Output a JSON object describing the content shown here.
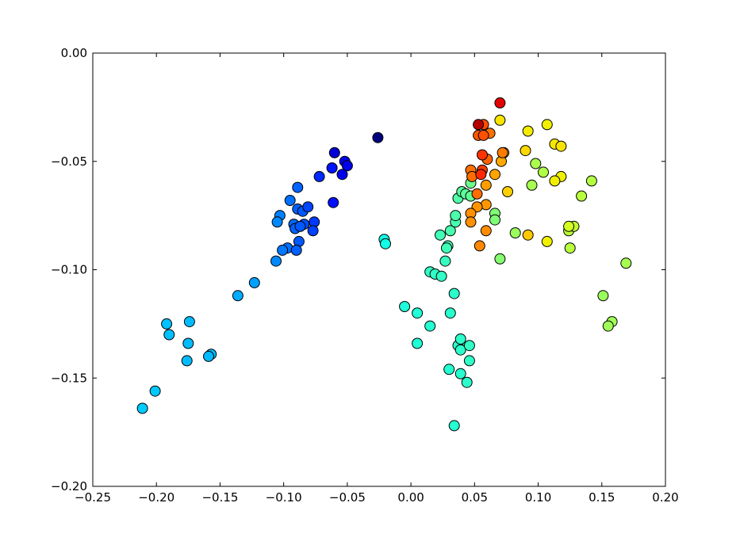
{
  "chart_data": {
    "type": "scatter",
    "title": "",
    "xlabel": "",
    "ylabel": "",
    "xlim": [
      -0.25,
      0.2
    ],
    "ylim": [
      -0.2,
      0.0
    ],
    "grid": false,
    "colormap": "jet",
    "marker_edge_color": "#000000",
    "x_ticks": [
      {
        "value": -0.25,
        "label": "−0.25"
      },
      {
        "value": -0.2,
        "label": "−0.20"
      },
      {
        "value": -0.15,
        "label": "−0.15"
      },
      {
        "value": -0.1,
        "label": "−0.10"
      },
      {
        "value": -0.05,
        "label": "−0.05"
      },
      {
        "value": 0.0,
        "label": "0.00"
      },
      {
        "value": 0.05,
        "label": "0.05"
      },
      {
        "value": 0.1,
        "label": "0.10"
      },
      {
        "value": 0.15,
        "label": "0.15"
      },
      {
        "value": 0.2,
        "label": "0.20"
      }
    ],
    "y_ticks": [
      {
        "value": 0.0,
        "label": "0.00"
      },
      {
        "value": -0.05,
        "label": "−0.05"
      },
      {
        "value": -0.1,
        "label": "−0.10"
      },
      {
        "value": -0.15,
        "label": "−0.15"
      },
      {
        "value": -0.2,
        "label": "−0.20"
      }
    ],
    "points": [
      {
        "x": -0.026,
        "y": -0.039,
        "color": "#00007f"
      },
      {
        "x": -0.06,
        "y": -0.046,
        "color": "#0000d4"
      },
      {
        "x": -0.052,
        "y": -0.05,
        "color": "#0000e8"
      },
      {
        "x": -0.05,
        "y": -0.052,
        "color": "#0000ea"
      },
      {
        "x": -0.062,
        "y": -0.053,
        "color": "#0014ff"
      },
      {
        "x": -0.054,
        "y": -0.056,
        "color": "#0000f0"
      },
      {
        "x": -0.072,
        "y": -0.057,
        "color": "#0028ff"
      },
      {
        "x": -0.061,
        "y": -0.069,
        "color": "#0010ff"
      },
      {
        "x": -0.089,
        "y": -0.062,
        "color": "#0064ff"
      },
      {
        "x": -0.095,
        "y": -0.068,
        "color": "#0070ff"
      },
      {
        "x": -0.089,
        "y": -0.072,
        "color": "#0060ff"
      },
      {
        "x": -0.085,
        "y": -0.073,
        "color": "#0058ff"
      },
      {
        "x": -0.081,
        "y": -0.071,
        "color": "#0044ff"
      },
      {
        "x": -0.103,
        "y": -0.075,
        "color": "#0080ff"
      },
      {
        "x": -0.105,
        "y": -0.078,
        "color": "#0088ff"
      },
      {
        "x": -0.076,
        "y": -0.078,
        "color": "#0038ff"
      },
      {
        "x": -0.092,
        "y": -0.079,
        "color": "#0068ff"
      },
      {
        "x": -0.084,
        "y": -0.079,
        "color": "#0050ff"
      },
      {
        "x": -0.091,
        "y": -0.081,
        "color": "#0060ff"
      },
      {
        "x": -0.087,
        "y": -0.08,
        "color": "#0058ff"
      },
      {
        "x": -0.077,
        "y": -0.082,
        "color": "#0040ff"
      },
      {
        "x": -0.088,
        "y": -0.087,
        "color": "#0058ff"
      },
      {
        "x": -0.097,
        "y": -0.09,
        "color": "#0070ff"
      },
      {
        "x": -0.101,
        "y": -0.091,
        "color": "#0078ff"
      },
      {
        "x": -0.09,
        "y": -0.091,
        "color": "#0060ff"
      },
      {
        "x": -0.106,
        "y": -0.096,
        "color": "#0088ff"
      },
      {
        "x": -0.123,
        "y": -0.106,
        "color": "#00a0ff"
      },
      {
        "x": -0.136,
        "y": -0.112,
        "color": "#00acff"
      },
      {
        "x": -0.192,
        "y": -0.125,
        "color": "#00c0ff"
      },
      {
        "x": -0.174,
        "y": -0.124,
        "color": "#00bcff"
      },
      {
        "x": -0.19,
        "y": -0.13,
        "color": "#00c0ff"
      },
      {
        "x": -0.175,
        "y": -0.134,
        "color": "#00bcff"
      },
      {
        "x": -0.157,
        "y": -0.139,
        "color": "#00b8ff"
      },
      {
        "x": -0.159,
        "y": -0.14,
        "color": "#00b8ff"
      },
      {
        "x": -0.176,
        "y": -0.142,
        "color": "#00bcff"
      },
      {
        "x": -0.201,
        "y": -0.156,
        "color": "#00c8ff"
      },
      {
        "x": -0.211,
        "y": -0.164,
        "color": "#00ccff"
      },
      {
        "x": -0.021,
        "y": -0.086,
        "color": "#10ffe6"
      },
      {
        "x": -0.02,
        "y": -0.088,
        "color": "#10ffe6"
      },
      {
        "x": -0.005,
        "y": -0.117,
        "color": "#1cffda"
      },
      {
        "x": 0.005,
        "y": -0.12,
        "color": "#20ffd6"
      },
      {
        "x": 0.005,
        "y": -0.134,
        "color": "#20ffd6"
      },
      {
        "x": 0.015,
        "y": -0.126,
        "color": "#24ffd2"
      },
      {
        "x": 0.015,
        "y": -0.101,
        "color": "#30ffc6"
      },
      {
        "x": 0.019,
        "y": -0.102,
        "color": "#30ffc6"
      },
      {
        "x": 0.024,
        "y": -0.103,
        "color": "#30ffc6"
      },
      {
        "x": 0.027,
        "y": -0.096,
        "color": "#38ffbe"
      },
      {
        "x": 0.023,
        "y": -0.084,
        "color": "#40ffb6"
      },
      {
        "x": 0.029,
        "y": -0.089,
        "color": "#40ffb6"
      },
      {
        "x": 0.028,
        "y": -0.09,
        "color": "#40ffb6"
      },
      {
        "x": 0.031,
        "y": -0.082,
        "color": "#48ffae"
      },
      {
        "x": 0.035,
        "y": -0.078,
        "color": "#48ffae"
      },
      {
        "x": 0.035,
        "y": -0.075,
        "color": "#4cffaa"
      },
      {
        "x": 0.037,
        "y": -0.067,
        "color": "#50ffa6"
      },
      {
        "x": 0.04,
        "y": -0.064,
        "color": "#58ff9e"
      },
      {
        "x": 0.043,
        "y": -0.065,
        "color": "#5cff9a"
      },
      {
        "x": 0.047,
        "y": -0.066,
        "color": "#60ff96"
      },
      {
        "x": 0.047,
        "y": -0.06,
        "color": "#6aff8c"
      },
      {
        "x": 0.031,
        "y": -0.12,
        "color": "#28ffce"
      },
      {
        "x": 0.034,
        "y": -0.111,
        "color": "#2cffca"
      },
      {
        "x": 0.037,
        "y": -0.135,
        "color": "#28ffce"
      },
      {
        "x": 0.039,
        "y": -0.132,
        "color": "#2cffca"
      },
      {
        "x": 0.039,
        "y": -0.137,
        "color": "#2cffca"
      },
      {
        "x": 0.046,
        "y": -0.135,
        "color": "#30ffc6"
      },
      {
        "x": 0.046,
        "y": -0.142,
        "color": "#30ffc6"
      },
      {
        "x": 0.03,
        "y": -0.146,
        "color": "#24ffd2"
      },
      {
        "x": 0.039,
        "y": -0.148,
        "color": "#28ffce"
      },
      {
        "x": 0.044,
        "y": -0.152,
        "color": "#2cffca"
      },
      {
        "x": 0.034,
        "y": -0.172,
        "color": "#24ffd2"
      },
      {
        "x": 0.066,
        "y": -0.074,
        "color": "#80ff76"
      },
      {
        "x": 0.066,
        "y": -0.077,
        "color": "#80ff76"
      },
      {
        "x": 0.07,
        "y": -0.095,
        "color": "#86ff70"
      },
      {
        "x": 0.082,
        "y": -0.083,
        "color": "#9aff5c"
      },
      {
        "x": 0.095,
        "y": -0.061,
        "color": "#a6ff50"
      },
      {
        "x": 0.098,
        "y": -0.051,
        "color": "#aaff4c"
      },
      {
        "x": 0.104,
        "y": -0.055,
        "color": "#b0ff46"
      },
      {
        "x": 0.142,
        "y": -0.059,
        "color": "#b4ff42"
      },
      {
        "x": 0.134,
        "y": -0.066,
        "color": "#b8ff3e"
      },
      {
        "x": 0.124,
        "y": -0.082,
        "color": "#bcff3a"
      },
      {
        "x": 0.125,
        "y": -0.09,
        "color": "#b8ff3e"
      },
      {
        "x": 0.128,
        "y": -0.08,
        "color": "#c4ff32"
      },
      {
        "x": 0.169,
        "y": -0.097,
        "color": "#a6ff50"
      },
      {
        "x": 0.151,
        "y": -0.112,
        "color": "#9aff5c"
      },
      {
        "x": 0.158,
        "y": -0.124,
        "color": "#a0ff56"
      },
      {
        "x": 0.155,
        "y": -0.126,
        "color": "#a0ff56"
      },
      {
        "x": 0.124,
        "y": -0.08,
        "color": "#d4ff22"
      },
      {
        "x": 0.107,
        "y": -0.033,
        "color": "#f0f000"
      },
      {
        "x": 0.092,
        "y": -0.036,
        "color": "#f4ec00"
      },
      {
        "x": 0.113,
        "y": -0.042,
        "color": "#f6e800"
      },
      {
        "x": 0.118,
        "y": -0.043,
        "color": "#f8e400"
      },
      {
        "x": 0.118,
        "y": -0.057,
        "color": "#f0f000"
      },
      {
        "x": 0.113,
        "y": -0.059,
        "color": "#f2ee00"
      },
      {
        "x": 0.107,
        "y": -0.087,
        "color": "#f0f000"
      },
      {
        "x": 0.07,
        "y": -0.031,
        "color": "#f8e400"
      },
      {
        "x": 0.09,
        "y": -0.045,
        "color": "#ffd800"
      },
      {
        "x": 0.076,
        "y": -0.064,
        "color": "#ffd000"
      },
      {
        "x": 0.092,
        "y": -0.084,
        "color": "#ffc800"
      },
      {
        "x": 0.073,
        "y": -0.046,
        "color": "#ffb400"
      },
      {
        "x": 0.071,
        "y": -0.05,
        "color": "#ffa800"
      },
      {
        "x": 0.066,
        "y": -0.056,
        "color": "#ffa400"
      },
      {
        "x": 0.059,
        "y": -0.061,
        "color": "#ff9c00"
      },
      {
        "x": 0.059,
        "y": -0.07,
        "color": "#ff9800"
      },
      {
        "x": 0.052,
        "y": -0.071,
        "color": "#ff9400"
      },
      {
        "x": 0.047,
        "y": -0.074,
        "color": "#ff9000"
      },
      {
        "x": 0.047,
        "y": -0.078,
        "color": "#ff9000"
      },
      {
        "x": 0.059,
        "y": -0.082,
        "color": "#ff8c00"
      },
      {
        "x": 0.054,
        "y": -0.089,
        "color": "#ff8800"
      },
      {
        "x": 0.072,
        "y": -0.046,
        "color": "#ff7c00"
      },
      {
        "x": 0.062,
        "y": -0.037,
        "color": "#ff7000"
      },
      {
        "x": 0.047,
        "y": -0.054,
        "color": "#ff7000"
      },
      {
        "x": 0.048,
        "y": -0.057,
        "color": "#ff6c00"
      },
      {
        "x": 0.052,
        "y": -0.065,
        "color": "#ff6c00"
      },
      {
        "x": 0.06,
        "y": -0.049,
        "color": "#ff6400"
      },
      {
        "x": 0.053,
        "y": -0.038,
        "color": "#ff5800"
      },
      {
        "x": 0.057,
        "y": -0.038,
        "color": "#ff5000"
      },
      {
        "x": 0.057,
        "y": -0.033,
        "color": "#ff4c00"
      },
      {
        "x": 0.056,
        "y": -0.054,
        "color": "#ff3c00"
      },
      {
        "x": 0.056,
        "y": -0.047,
        "color": "#ff3400"
      },
      {
        "x": 0.055,
        "y": -0.056,
        "color": "#ff2800"
      },
      {
        "x": 0.053,
        "y": -0.033,
        "color": "#b40000"
      },
      {
        "x": 0.07,
        "y": -0.023,
        "color": "#e40000"
      }
    ]
  }
}
